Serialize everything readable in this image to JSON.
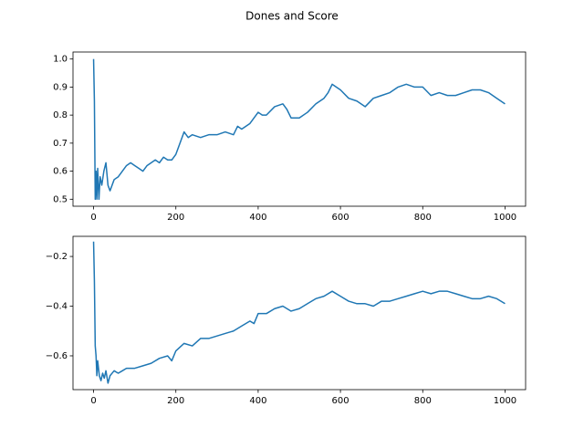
{
  "title": "Dones and Score",
  "chart_data": [
    {
      "type": "line",
      "color": "#1f77b4",
      "xlim": [
        -50,
        1050
      ],
      "xticks": [
        0,
        200,
        400,
        600,
        800,
        1000
      ],
      "ylim": [
        0.475,
        1.025
      ],
      "yticks": [
        {
          "value": 0.5,
          "label": "0.5"
        },
        {
          "value": 0.6,
          "label": "0.6"
        },
        {
          "value": 0.7,
          "label": "0.7"
        },
        {
          "value": 0.8,
          "label": "0.8"
        },
        {
          "value": 0.9,
          "label": "0.9"
        },
        {
          "value": 1.0,
          "label": "1.0"
        }
      ],
      "x": [
        0,
        2,
        4,
        6,
        8,
        10,
        13,
        16,
        20,
        25,
        30,
        35,
        40,
        50,
        60,
        70,
        80,
        90,
        100,
        110,
        120,
        130,
        140,
        150,
        160,
        170,
        180,
        190,
        200,
        210,
        220,
        230,
        240,
        260,
        280,
        300,
        320,
        340,
        350,
        360,
        380,
        400,
        410,
        420,
        440,
        460,
        470,
        480,
        500,
        520,
        540,
        560,
        570,
        580,
        600,
        620,
        640,
        660,
        680,
        700,
        720,
        740,
        760,
        780,
        800,
        820,
        840,
        860,
        880,
        900,
        920,
        940,
        960,
        980,
        1000
      ],
      "values": [
        1.0,
        0.85,
        0.5,
        0.6,
        0.5,
        0.61,
        0.5,
        0.58,
        0.55,
        0.6,
        0.63,
        0.55,
        0.53,
        0.57,
        0.58,
        0.6,
        0.62,
        0.63,
        0.62,
        0.61,
        0.6,
        0.62,
        0.63,
        0.64,
        0.63,
        0.65,
        0.64,
        0.64,
        0.66,
        0.7,
        0.74,
        0.72,
        0.73,
        0.72,
        0.73,
        0.73,
        0.74,
        0.73,
        0.76,
        0.75,
        0.77,
        0.81,
        0.8,
        0.8,
        0.83,
        0.84,
        0.82,
        0.79,
        0.79,
        0.81,
        0.84,
        0.86,
        0.88,
        0.91,
        0.89,
        0.86,
        0.85,
        0.83,
        0.86,
        0.87,
        0.88,
        0.9,
        0.91,
        0.9,
        0.9,
        0.87,
        0.88,
        0.87,
        0.87,
        0.88,
        0.89,
        0.89,
        0.88,
        0.86,
        0.84
      ]
    },
    {
      "type": "line",
      "color": "#1f77b4",
      "xlim": [
        -50,
        1050
      ],
      "xticks": [
        0,
        200,
        400,
        600,
        800,
        1000
      ],
      "ylim": [
        -0.736,
        -0.119
      ],
      "yticks": [
        {
          "value": -0.6,
          "label": "−0.6"
        },
        {
          "value": -0.4,
          "label": "−0.4"
        },
        {
          "value": -0.2,
          "label": "−0.2"
        }
      ],
      "x": [
        0,
        2,
        4,
        6,
        8,
        10,
        14,
        18,
        22,
        26,
        30,
        35,
        40,
        50,
        60,
        70,
        80,
        100,
        120,
        140,
        160,
        180,
        190,
        200,
        220,
        240,
        260,
        280,
        300,
        320,
        340,
        360,
        380,
        390,
        400,
        420,
        440,
        460,
        480,
        500,
        520,
        540,
        560,
        580,
        600,
        620,
        640,
        660,
        680,
        700,
        720,
        740,
        760,
        780,
        800,
        820,
        840,
        860,
        880,
        900,
        920,
        940,
        960,
        980,
        1000
      ],
      "values": [
        -0.14,
        -0.3,
        -0.56,
        -0.6,
        -0.68,
        -0.62,
        -0.68,
        -0.7,
        -0.67,
        -0.69,
        -0.66,
        -0.71,
        -0.68,
        -0.66,
        -0.67,
        -0.66,
        -0.65,
        -0.65,
        -0.64,
        -0.63,
        -0.61,
        -0.6,
        -0.62,
        -0.58,
        -0.55,
        -0.56,
        -0.53,
        -0.53,
        -0.52,
        -0.51,
        -0.5,
        -0.48,
        -0.46,
        -0.47,
        -0.43,
        -0.43,
        -0.41,
        -0.4,
        -0.42,
        -0.41,
        -0.39,
        -0.37,
        -0.36,
        -0.34,
        -0.36,
        -0.38,
        -0.39,
        -0.39,
        -0.4,
        -0.38,
        -0.38,
        -0.37,
        -0.36,
        -0.35,
        -0.34,
        -0.35,
        -0.34,
        -0.34,
        -0.35,
        -0.36,
        -0.37,
        -0.37,
        -0.36,
        -0.37,
        -0.39
      ]
    }
  ]
}
